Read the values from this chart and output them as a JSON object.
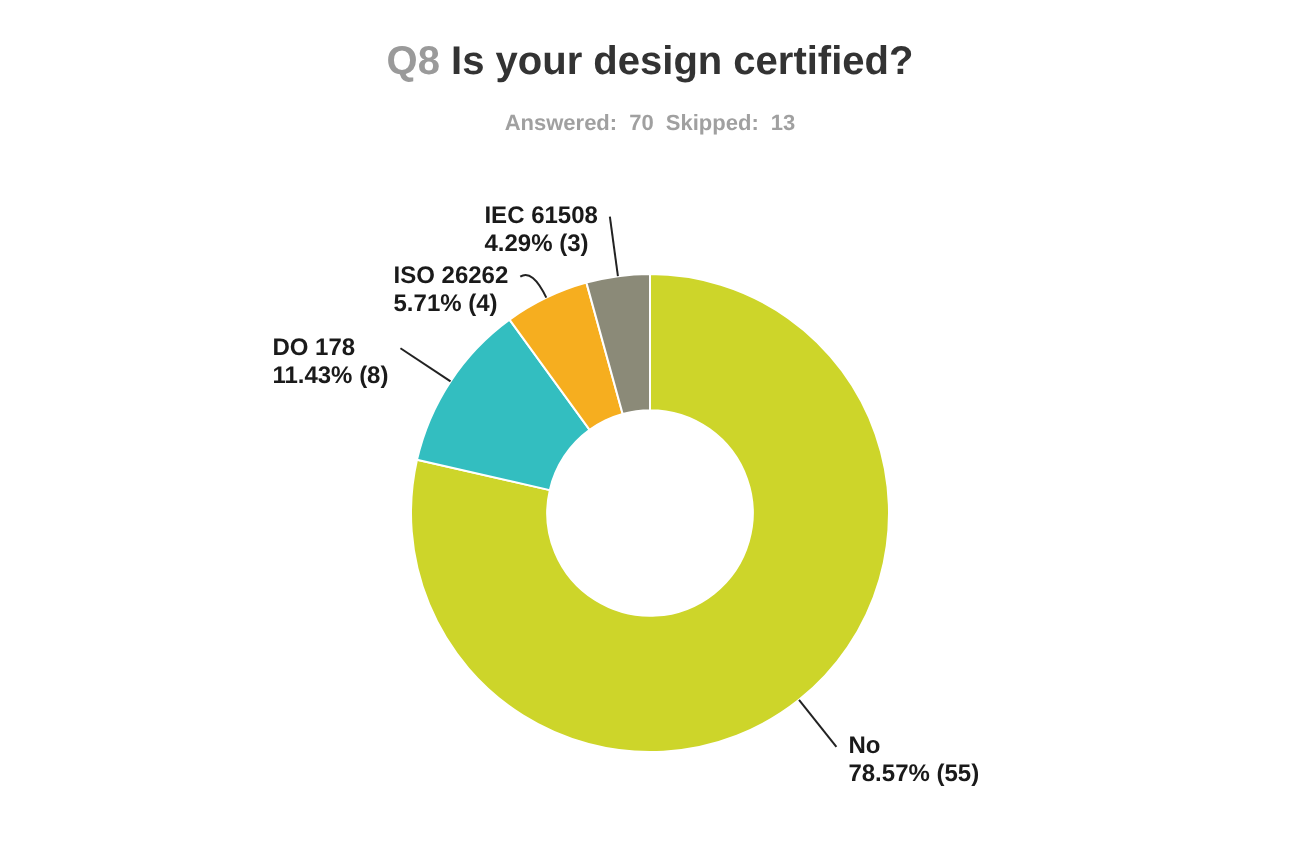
{
  "chart_data": {
    "type": "donut",
    "title": "Q8 Is your design certified?",
    "subtitle": "Answered: 70 Skipped: 13",
    "categories": [
      "No",
      "DO 178",
      "ISO 26262",
      "IEC 61508"
    ],
    "values": [
      55,
      8,
      4,
      3
    ],
    "colors": [
      "#cdd52a",
      "#33bec0",
      "#f6ae1f",
      "#8b8a78"
    ],
    "value_labels": [
      "78.57% (55)",
      "11.43% (8)",
      "5.71% (4)",
      "4.29% (3)"
    ]
  }
}
